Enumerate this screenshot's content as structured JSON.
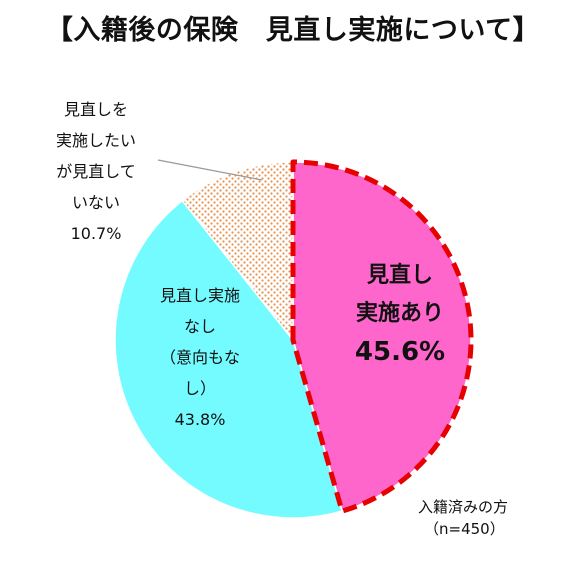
{
  "chart_data": {
    "type": "pie",
    "title": "【入籍後の保険　見直し実施について】",
    "slices": [
      {
        "label_lines": [
          "見直し",
          "実施あり"
        ],
        "value": 45.6,
        "value_label": "45.6%",
        "color": "#ff66cc",
        "highlighted": true
      },
      {
        "label_lines": [
          "見直し実施",
          "なし",
          "（意向もな",
          "し）"
        ],
        "value": 43.8,
        "value_label": "43.8%",
        "color": "#73fbff"
      },
      {
        "label_lines": [
          "見直しを",
          "実施したい",
          "が見直して",
          "いない"
        ],
        "value": 10.7,
        "value_label": "10.7%",
        "color": "#f4a460",
        "pattern": "dotted"
      }
    ],
    "note_lines": [
      "入籍済みの方",
      "（n=450）"
    ],
    "highlight_color": "#e60000"
  }
}
